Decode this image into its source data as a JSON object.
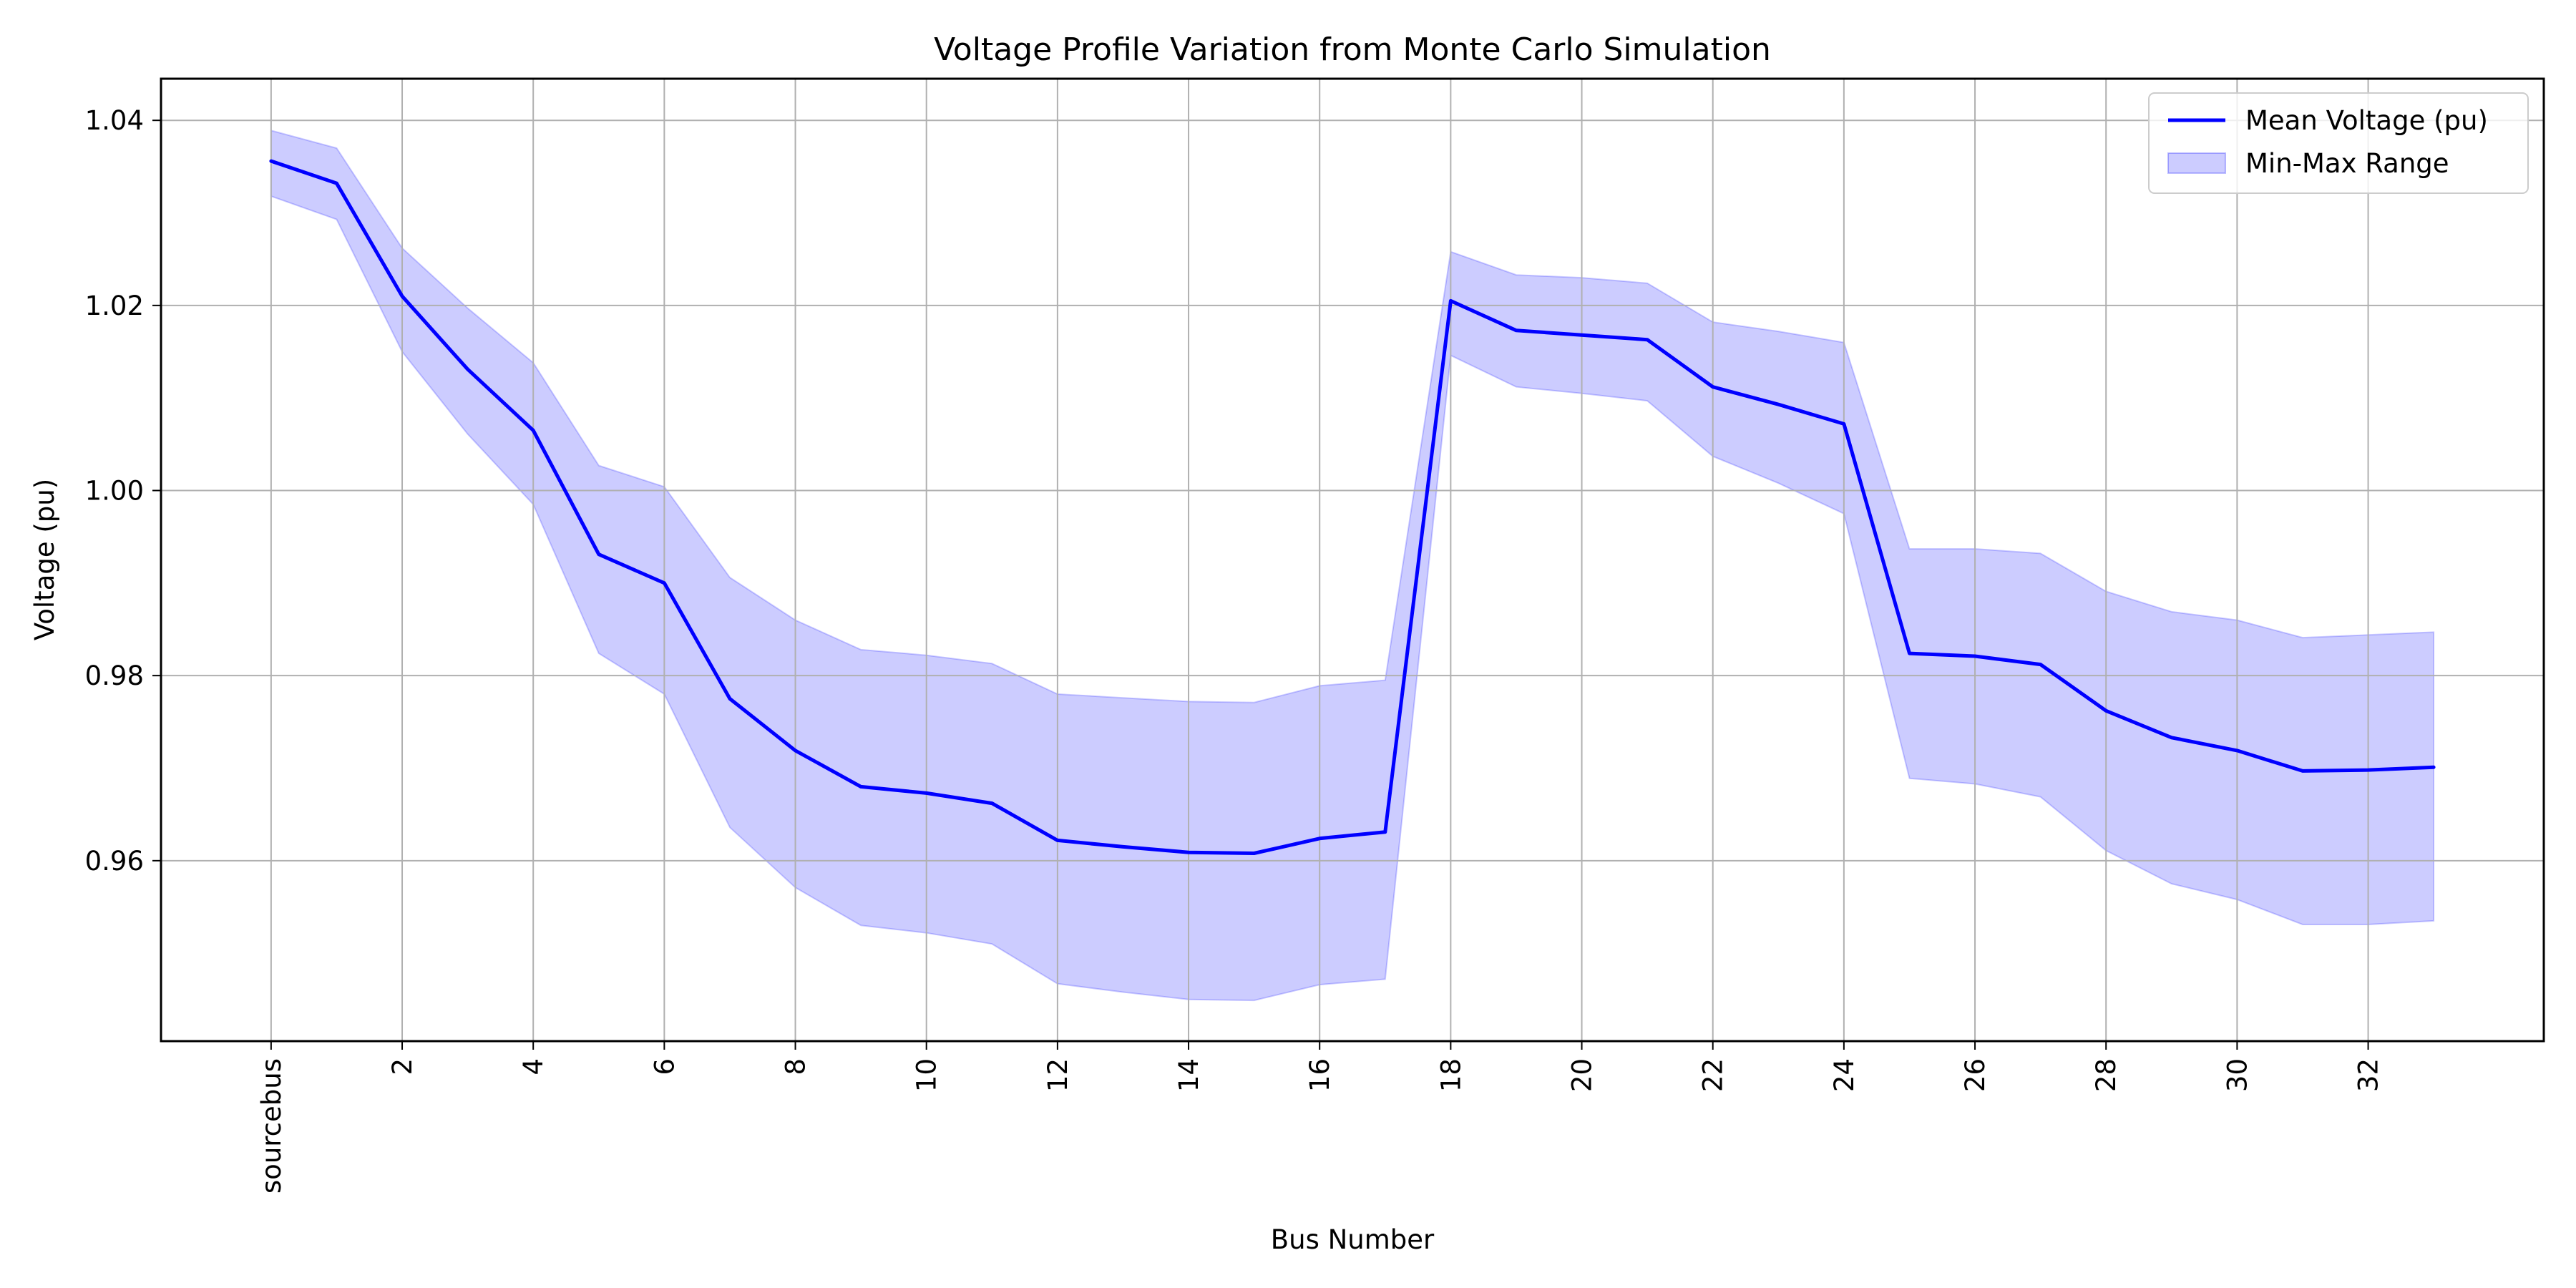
{
  "chart_data": {
    "type": "line",
    "title": "Voltage Profile Variation from Monte Carlo Simulation",
    "xlabel": "Bus Number",
    "ylabel": "Voltage (pu)",
    "x": [
      0,
      1,
      2,
      3,
      4,
      5,
      6,
      7,
      8,
      9,
      10,
      11,
      12,
      13,
      14,
      15,
      16,
      17,
      18,
      19,
      20,
      21,
      22,
      23,
      24,
      25,
      26,
      27,
      28,
      29,
      30,
      31,
      32,
      33
    ],
    "xticks": [
      0,
      2,
      4,
      6,
      8,
      10,
      12,
      14,
      16,
      18,
      20,
      22,
      24,
      26,
      28,
      30,
      32
    ],
    "xticklabels": [
      "sourcebus",
      "2",
      "4",
      "6",
      "8",
      "10",
      "12",
      "14",
      "16",
      "18",
      "20",
      "22",
      "24",
      "26",
      "28",
      "30",
      "32"
    ],
    "xlim": [
      -1.68,
      34.68
    ],
    "ylim": [
      0.9405,
      1.0445
    ],
    "yticks": [
      0.96,
      0.98,
      1.0,
      1.02,
      1.04
    ],
    "yticklabels": [
      "0.96",
      "0.98",
      "1.00",
      "1.02",
      "1.04"
    ],
    "grid": true,
    "legend_position": "top-right",
    "series": [
      {
        "name": "Mean Voltage (pu)",
        "kind": "line",
        "color": "#0000ff",
        "values": [
          1.0356,
          1.0332,
          1.021,
          1.0131,
          1.0065,
          0.9931,
          0.99,
          0.9775,
          0.9719,
          0.968,
          0.9673,
          0.9662,
          0.9622,
          0.9615,
          0.9609,
          0.9608,
          0.9624,
          0.9631,
          1.0205,
          1.0173,
          1.0168,
          1.0163,
          1.0112,
          1.0093,
          1.0072,
          0.9824,
          0.9821,
          0.9812,
          0.9762,
          0.9733,
          0.9719,
          0.9697,
          0.9698,
          0.9701
        ]
      },
      {
        "name": "Min-Max Range",
        "kind": "band",
        "color": "#0000ff",
        "min": [
          1.0318,
          1.0293,
          1.015,
          1.0061,
          0.9985,
          0.9824,
          0.978,
          0.9636,
          0.9571,
          0.953,
          0.9522,
          0.951,
          0.9467,
          0.9458,
          0.945,
          0.9449,
          0.9466,
          0.9472,
          1.0146,
          1.0112,
          1.0105,
          1.0097,
          1.0037,
          1.0008,
          0.9975,
          0.9689,
          0.9683,
          0.9669,
          0.9611,
          0.9575,
          0.9558,
          0.9531,
          0.9531,
          0.9535
        ],
        "max": [
          1.0389,
          1.037,
          1.0262,
          1.0197,
          1.0138,
          1.0027,
          1.0004,
          0.9906,
          0.986,
          0.9828,
          0.9822,
          0.9813,
          0.978,
          0.9776,
          0.9772,
          0.9771,
          0.9789,
          0.9795,
          1.0258,
          1.0233,
          1.023,
          1.0224,
          1.0182,
          1.0172,
          1.016,
          0.9937,
          0.9937,
          0.9932,
          0.9891,
          0.9869,
          0.986,
          0.9841,
          0.9844,
          0.9847
        ]
      }
    ]
  }
}
